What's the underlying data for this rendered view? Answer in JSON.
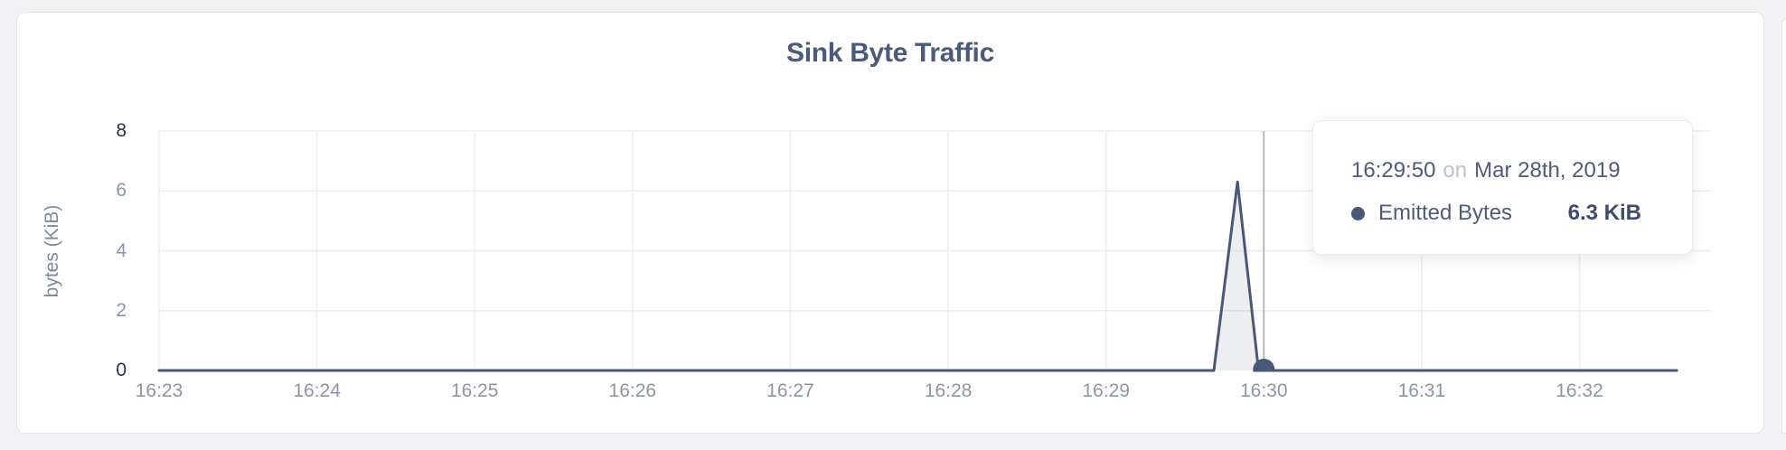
{
  "page": {
    "background": "#f1f1f3"
  },
  "card": {
    "title": "Sink Byte Traffic"
  },
  "y_axis": {
    "label": "bytes (KiB)",
    "ticks": [
      {
        "value": 0,
        "label": "0",
        "emphasis": true
      },
      {
        "value": 2,
        "label": "2",
        "emphasis": false
      },
      {
        "value": 4,
        "label": "4",
        "emphasis": false
      },
      {
        "value": 6,
        "label": "6",
        "emphasis": false
      },
      {
        "value": 8,
        "label": "8",
        "emphasis": true
      }
    ]
  },
  "x_axis": {
    "ticks": [
      "16:23",
      "16:24",
      "16:25",
      "16:26",
      "16:27",
      "16:28",
      "16:29",
      "16:30",
      "16:31",
      "16:32"
    ]
  },
  "tooltip": {
    "time": "16:29:50",
    "preposition": "on",
    "date": "Mar 28th, 2019",
    "series_label": "Emitted Bytes",
    "value": "6.3 KiB",
    "bullet_color": "#4a5878"
  },
  "chart_data": {
    "type": "area",
    "title": "Sink Byte Traffic",
    "xlabel": "",
    "ylabel": "bytes (KiB)",
    "ylim": [
      0,
      8
    ],
    "y_ticks": [
      0,
      2,
      4,
      6,
      8
    ],
    "x_domain": [
      "16:23:00",
      "16:32:50"
    ],
    "x_tick_times": [
      "16:23",
      "16:24",
      "16:25",
      "16:26",
      "16:27",
      "16:28",
      "16:29",
      "16:30",
      "16:31",
      "16:32"
    ],
    "grid": true,
    "legend": "none",
    "series": [
      {
        "name": "Emitted Bytes",
        "color": "#4a5878",
        "fill": "rgba(74,88,120,0.10)",
        "points": [
          [
            "16:23:00",
            0
          ],
          [
            "16:29:41",
            0
          ],
          [
            "16:29:50",
            6.3
          ],
          [
            "16:29:58",
            0
          ],
          [
            "16:32:37",
            0
          ]
        ]
      }
    ],
    "hover_marker": {
      "time": "16:30:00",
      "value": 0,
      "crosshair": true,
      "crosshair_color": "#b5b9c2"
    },
    "grid_color": "#ededef"
  }
}
